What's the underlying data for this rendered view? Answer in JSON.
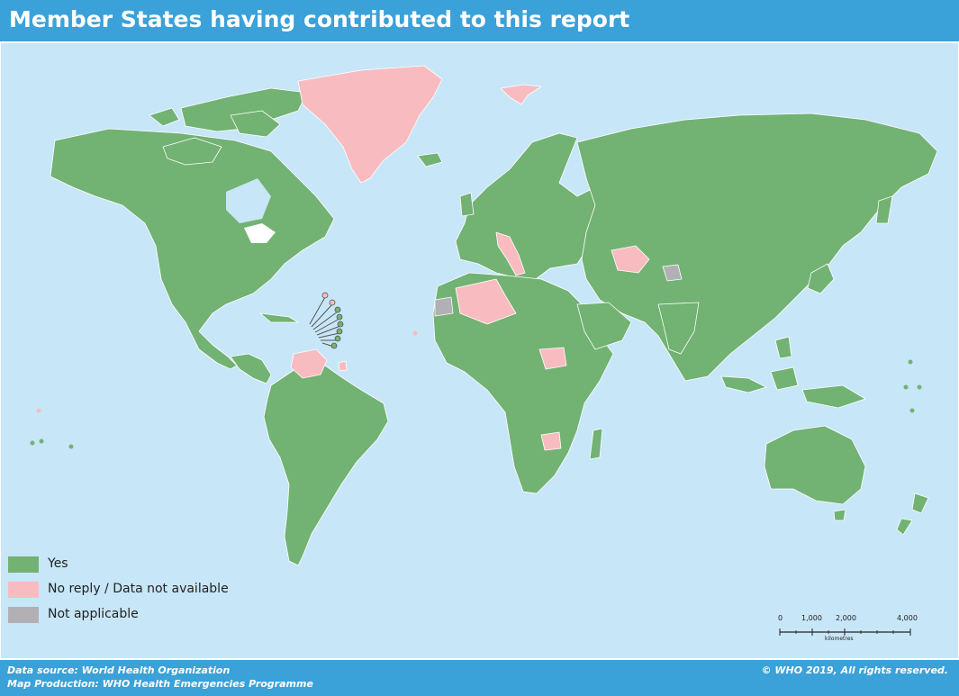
{
  "header": {
    "title": "Member States having contributed to this report"
  },
  "colors": {
    "ocean": "#c7e6f8",
    "yes": "#72b273",
    "no_reply": "#f8bcc0",
    "not_applicable": "#b1b1b5",
    "banner": "#3aa1d9"
  },
  "legend": {
    "items": [
      {
        "label": "Yes",
        "color": "#72b273"
      },
      {
        "label": "No reply / Data not available",
        "color": "#f8bcc0"
      },
      {
        "label": "Not applicable",
        "color": "#b1b1b5"
      }
    ]
  },
  "scalebar": {
    "ticks": [
      "0",
      "1,000",
      "2,000",
      "4,000"
    ],
    "unit": "kilometres"
  },
  "footer": {
    "data_source": "Data source: World Health Organization",
    "map_production": "Map Production: WHO Health Emergencies Programme",
    "copyright": "© WHO 2019, All rights reserved."
  }
}
